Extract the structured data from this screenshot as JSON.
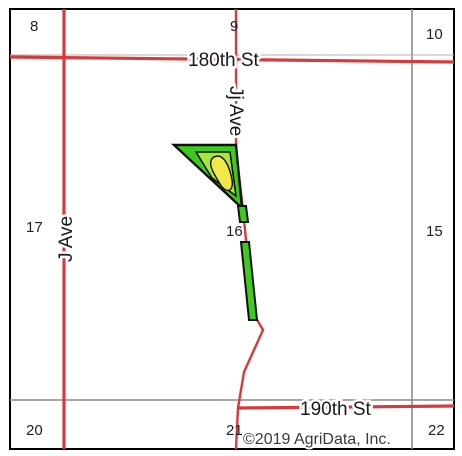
{
  "map": {
    "sections": {
      "s8": "8",
      "s9": "9",
      "s10": "10",
      "s17": "17",
      "s16": "16",
      "s15": "15",
      "s20": "20",
      "s21": "21",
      "s22": "22"
    },
    "roads": {
      "north_street": "180th St",
      "south_street": "190th St",
      "west_avenue": "J Ave",
      "center_avenue": "Jj Ave"
    },
    "copyright": "©2019 AgriData, Inc.",
    "colors": {
      "road": "#d63a3a",
      "section_line": "#8c8c8c",
      "frame": "#000000",
      "field_fill": "#3dcc1e",
      "field_inner": "#a6e83a",
      "field_highlight": "#f2e84a",
      "field_outline": "#111111"
    }
  }
}
